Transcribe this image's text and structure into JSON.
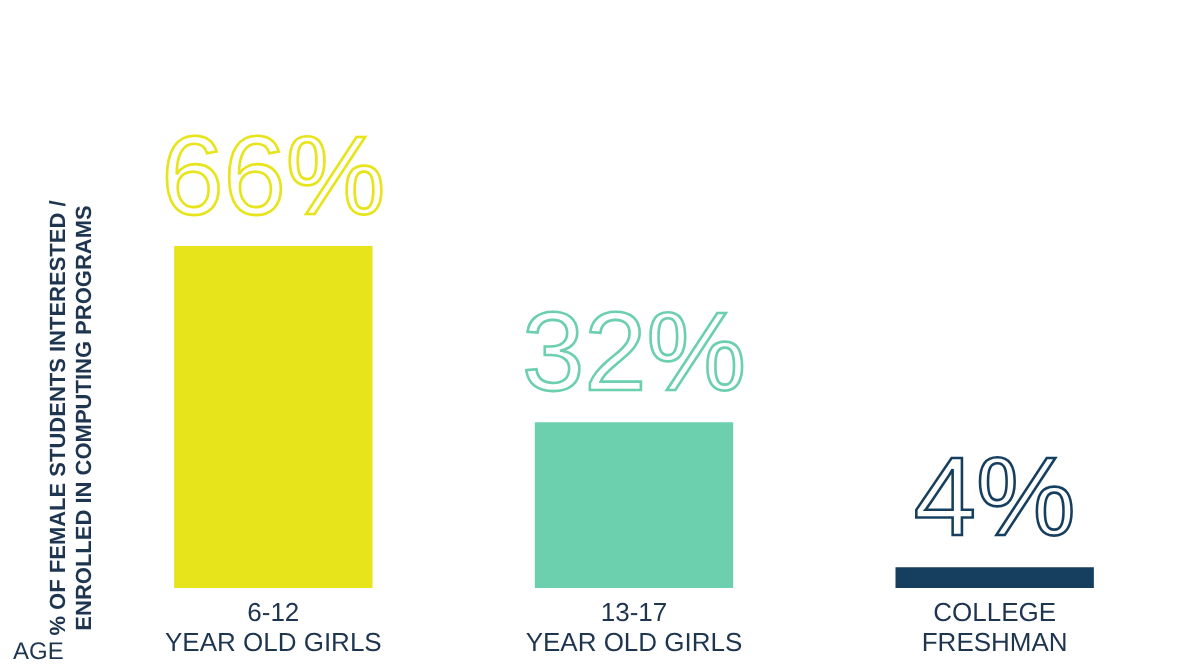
{
  "chart_data": {
    "type": "bar",
    "ylabel": "% OF FEMALE STUDENTS INTERESTED / ENROLLED IN COMPUTING PROGRAMS",
    "xlabel": "AGE",
    "categories": [
      "6-12 YEAR OLD GIRLS",
      "13-17 YEAR OLD GIRLS",
      "COLLEGE FRESHMAN"
    ],
    "values": [
      66,
      32,
      4
    ],
    "colors": [
      "#e8e41c",
      "#6ccfad",
      "#163f5f"
    ],
    "value_labels": [
      "66%",
      "32%",
      "4%"
    ],
    "grid": false
  }
}
